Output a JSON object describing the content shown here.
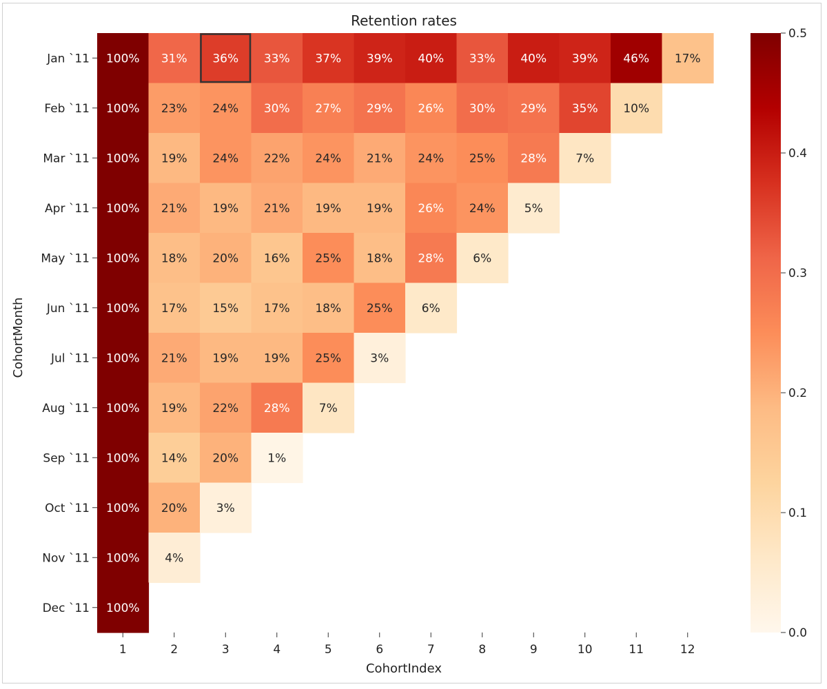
{
  "chart_data": {
    "type": "heatmap",
    "title": "Retention rates",
    "xlabel": "CohortIndex",
    "ylabel": "CohortMonth",
    "x_categories": [
      "1",
      "2",
      "3",
      "4",
      "5",
      "6",
      "7",
      "8",
      "9",
      "10",
      "11",
      "12"
    ],
    "y_categories": [
      "Jan `11",
      "Feb `11",
      "Mar `11",
      "Apr `11",
      "May `11",
      "Jun `11",
      "Jul `11",
      "Aug `11",
      "Sep `11",
      "Oct `11",
      "Nov `11",
      "Dec `11"
    ],
    "values": [
      [
        1.0,
        0.31,
        0.36,
        0.33,
        0.37,
        0.39,
        0.4,
        0.33,
        0.4,
        0.39,
        0.46,
        0.17
      ],
      [
        1.0,
        0.23,
        0.24,
        0.3,
        0.27,
        0.29,
        0.26,
        0.3,
        0.29,
        0.35,
        0.1
      ],
      [
        1.0,
        0.19,
        0.24,
        0.22,
        0.24,
        0.21,
        0.24,
        0.25,
        0.28,
        0.07
      ],
      [
        1.0,
        0.21,
        0.19,
        0.21,
        0.19,
        0.19,
        0.26,
        0.24,
        0.05
      ],
      [
        1.0,
        0.18,
        0.2,
        0.16,
        0.25,
        0.18,
        0.28,
        0.06
      ],
      [
        1.0,
        0.17,
        0.15,
        0.17,
        0.18,
        0.25,
        0.06
      ],
      [
        1.0,
        0.21,
        0.19,
        0.19,
        0.25,
        0.03
      ],
      [
        1.0,
        0.19,
        0.22,
        0.28,
        0.07
      ],
      [
        1.0,
        0.14,
        0.2,
        0.01
      ],
      [
        1.0,
        0.2,
        0.03
      ],
      [
        1.0,
        0.04
      ],
      [
        1.0
      ]
    ],
    "labels": [
      [
        "100%",
        "31%",
        "36%",
        "33%",
        "37%",
        "39%",
        "40%",
        "33%",
        "40%",
        "39%",
        "46%",
        "17%"
      ],
      [
        "100%",
        "23%",
        "24%",
        "30%",
        "27%",
        "29%",
        "26%",
        "30%",
        "29%",
        "35%",
        "10%"
      ],
      [
        "100%",
        "19%",
        "24%",
        "22%",
        "24%",
        "21%",
        "24%",
        "25%",
        "28%",
        "7%"
      ],
      [
        "100%",
        "21%",
        "19%",
        "21%",
        "19%",
        "19%",
        "26%",
        "24%",
        "5%"
      ],
      [
        "100%",
        "18%",
        "20%",
        "16%",
        "25%",
        "18%",
        "28%",
        "6%"
      ],
      [
        "100%",
        "17%",
        "15%",
        "17%",
        "18%",
        "25%",
        "6%"
      ],
      [
        "100%",
        "21%",
        "19%",
        "19%",
        "25%",
        "3%"
      ],
      [
        "100%",
        "19%",
        "22%",
        "28%",
        "7%"
      ],
      [
        "100%",
        "14%",
        "20%",
        "1%"
      ],
      [
        "100%",
        "20%",
        "3%"
      ],
      [
        "100%",
        "4%"
      ],
      [
        "100%"
      ]
    ],
    "colorbar": {
      "colormap": "OrRd",
      "range": [
        0.0,
        0.5
      ],
      "ticks": [
        "0.0",
        "0.1",
        "0.2",
        "0.3",
        "0.4",
        "0.5"
      ],
      "stops": [
        "#fff7ec",
        "#fee8c8",
        "#fdd49e",
        "#fdbb84",
        "#fc8d59",
        "#ef6548",
        "#d7301f",
        "#b30000",
        "#7f0000"
      ]
    },
    "highlighted_cell": {
      "row": "Jan `11",
      "column": "3"
    },
    "grid": false
  }
}
